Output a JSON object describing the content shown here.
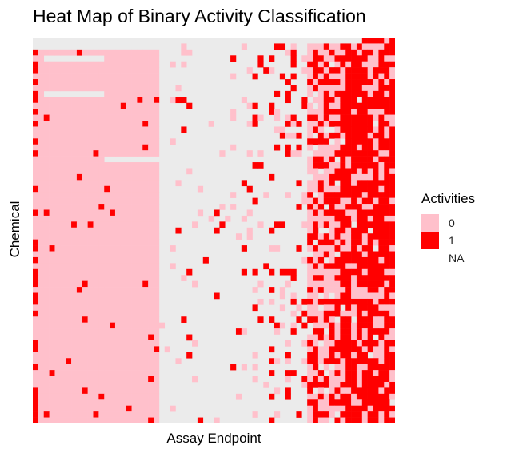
{
  "chart_data": {
    "type": "heatmap",
    "title": "Heat Map of Binary Activity Classification",
    "xlabel": "Assay Endpoint",
    "ylabel": "Chemical",
    "legend": {
      "title": "Activities",
      "position": "right",
      "entries": [
        {
          "label": "0",
          "color": "#FFC0CB"
        },
        {
          "label": "1",
          "color": "#FF0000"
        },
        {
          "label": "NA",
          "color": "#EBEBEB"
        }
      ]
    },
    "colors": {
      "inactive": "#FFC0CB",
      "active": "#FF0000",
      "na": "#EBEBEB"
    },
    "seed": 20,
    "column_groups": [
      {
        "columns": 1,
        "p_pink": 0.5,
        "p_red": 0.5
      },
      {
        "columns": 1,
        "p_pink": 1.0,
        "p_red": 0.0
      },
      {
        "columns": 21,
        "p_pink": 0.97,
        "p_red": 0.03
      },
      {
        "columns": 3,
        "p_pink": 0.04,
        "p_red": 0.01
      },
      {
        "columns": 17,
        "p_pink": 0.05,
        "p_red": 0.03
      },
      {
        "columns": 7,
        "p_pink": 0.08,
        "p_red": 0.12
      },
      {
        "columns": 6,
        "p_pink": 0.45,
        "p_red": 0.42
      },
      {
        "columns": 10,
        "p_pink": 0.28,
        "p_red": 0.7
      }
    ],
    "rows": 65,
    "row_overrides": [
      {
        "row": 0,
        "from": 0,
        "to": 60,
        "state": "na"
      },
      {
        "row": 1,
        "from": 0,
        "to": 25,
        "state": "na"
      },
      {
        "row": 3,
        "from": 2,
        "to": 13,
        "state": "na"
      },
      {
        "row": 9,
        "from": 2,
        "to": 13,
        "state": "na"
      },
      {
        "row": 20,
        "from": 13,
        "to": 50,
        "state": "na"
      }
    ]
  }
}
